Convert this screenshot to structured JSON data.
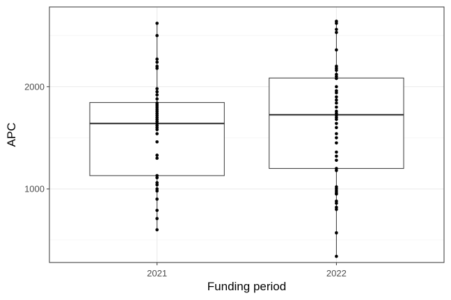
{
  "chart_data": {
    "type": "box",
    "xlabel": "Funding period",
    "ylabel": "APC",
    "categories": [
      "2021",
      "2022"
    ],
    "ylim": [
      280,
      2780
    ],
    "yticks": [
      1000,
      2000
    ],
    "grid": true,
    "boxes": [
      {
        "name": "2021",
        "q1": 1130,
        "median": 1640,
        "q3": 1845,
        "whisker_low": 600,
        "whisker_high": 2620,
        "points": [
          2620,
          2500,
          2270,
          2240,
          2200,
          2180,
          1980,
          1950,
          1920,
          1880,
          1840,
          1820,
          1800,
          1780,
          1760,
          1740,
          1720,
          1700,
          1680,
          1660,
          1640,
          1620,
          1600,
          1580,
          1540,
          1460,
          1330,
          1300,
          1130,
          1110,
          1060,
          1040,
          1000,
          980,
          900,
          790,
          710,
          600
        ]
      },
      {
        "name": "2022",
        "q1": 1200,
        "median": 1725,
        "q3": 2085,
        "whisker_low": 340,
        "whisker_high": 2640,
        "points": [
          2640,
          2620,
          2560,
          2530,
          2360,
          2200,
          2180,
          2160,
          2120,
          2100,
          2080,
          2000,
          1960,
          1940,
          1900,
          1870,
          1840,
          1800,
          1760,
          1740,
          1720,
          1700,
          1680,
          1640,
          1600,
          1540,
          1500,
          1450,
          1360,
          1320,
          1280,
          1200,
          1180,
          1020,
          1000,
          980,
          960,
          950,
          880,
          860,
          820,
          800,
          570,
          340
        ]
      }
    ]
  }
}
